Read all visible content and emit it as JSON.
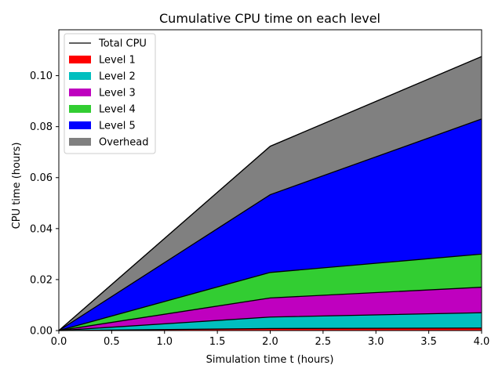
{
  "chart_data": {
    "type": "area",
    "stacked": true,
    "title": "Cumulative CPU time on each level",
    "xlabel": "Simulation time t (hours)",
    "ylabel": "CPU time (hours)",
    "x": [
      0,
      2,
      4
    ],
    "xlim": [
      0,
      4
    ],
    "ylim": [
      0,
      0.118
    ],
    "xticks": [
      0,
      0.5,
      1,
      1.5,
      2,
      2.5,
      3,
      3.5,
      4
    ],
    "xtick_labels": [
      "0.0",
      "0.5",
      "1.0",
      "1.5",
      "2.0",
      "2.5",
      "3.0",
      "3.5",
      "4.0"
    ],
    "yticks": [
      0,
      0.02,
      0.04,
      0.06,
      0.08,
      0.1
    ],
    "ytick_labels": [
      "0.00",
      "0.02",
      "0.04",
      "0.06",
      "0.08",
      "0.10"
    ],
    "grid": false,
    "legend_position": "top-left",
    "series": [
      {
        "name": "Level 1",
        "color": "#ff0000",
        "values": [
          0,
          0.0008,
          0.001
        ]
      },
      {
        "name": "Level 2",
        "color": "#00bfbf",
        "values": [
          0,
          0.0045,
          0.006
        ]
      },
      {
        "name": "Level 3",
        "color": "#bf00bf",
        "values": [
          0,
          0.0075,
          0.01
        ]
      },
      {
        "name": "Level 4",
        "color": "#32cd32",
        "values": [
          0,
          0.01,
          0.013
        ]
      },
      {
        "name": "Level 5",
        "color": "#0000ff",
        "values": [
          0,
          0.0305,
          0.053
        ]
      },
      {
        "name": "Overhead",
        "color": "#808080",
        "values": [
          0,
          0.019,
          0.0245
        ]
      }
    ],
    "total": {
      "name": "Total CPU",
      "color": "#000000",
      "values": [
        0,
        0.0723,
        0.1075
      ]
    }
  }
}
